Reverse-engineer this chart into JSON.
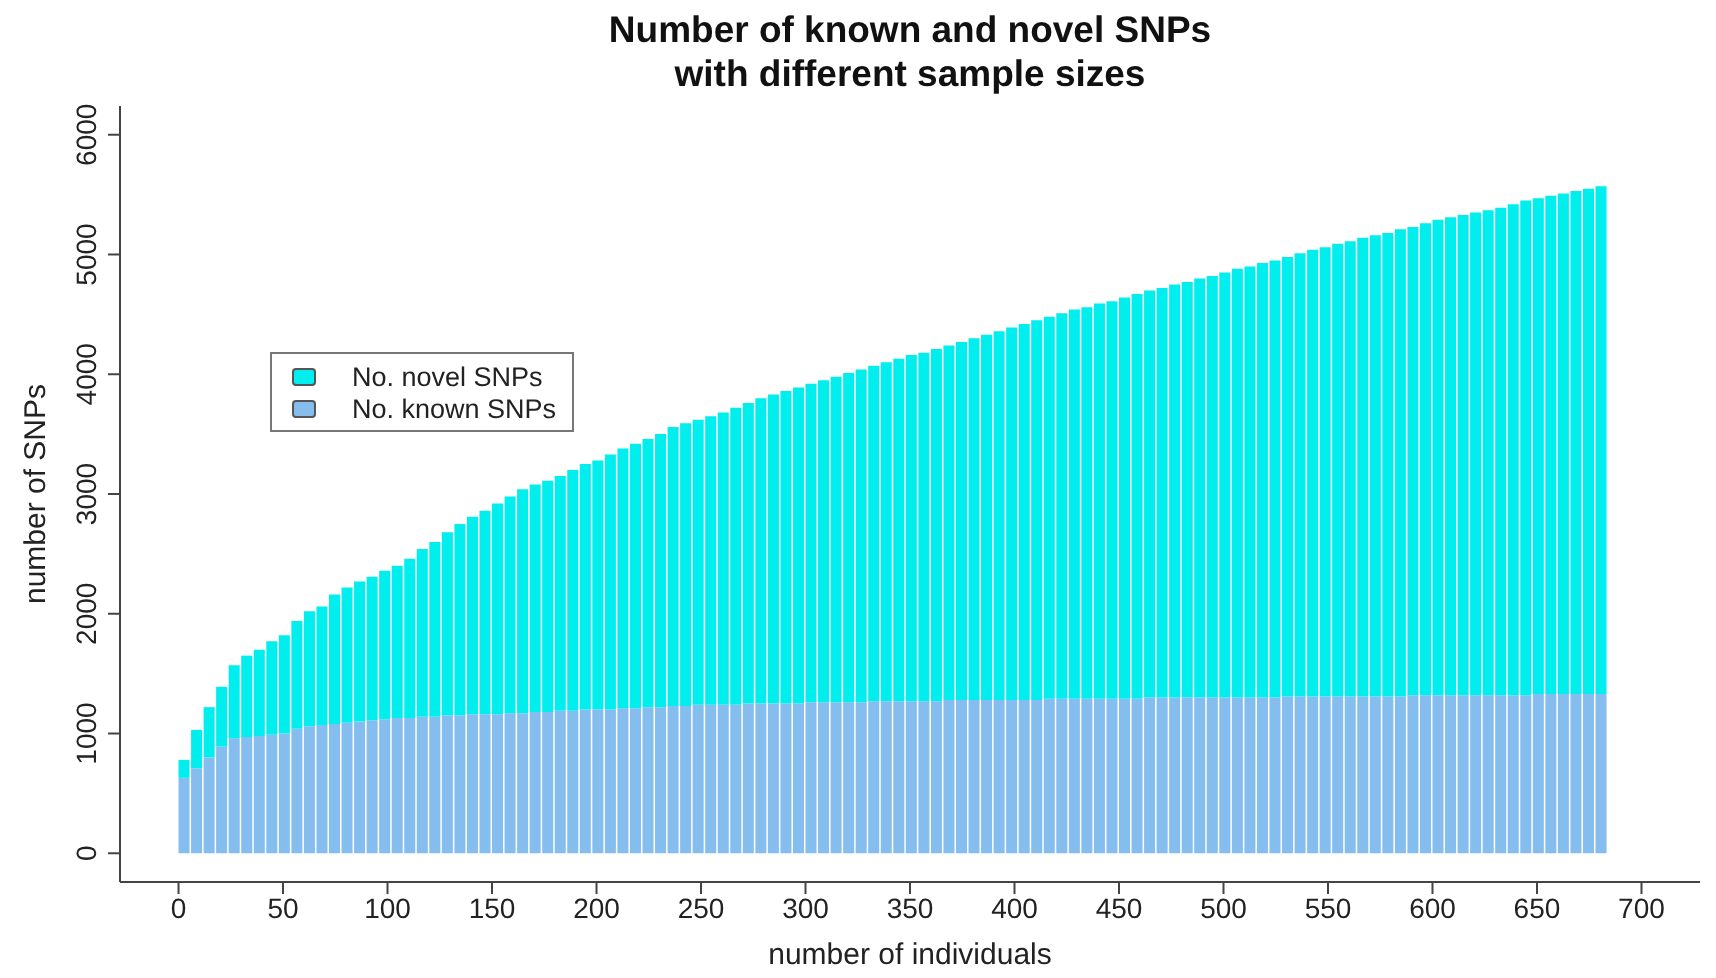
{
  "chart_data": {
    "type": "bar",
    "title": "Number of known and novel SNPs\nwith different sample sizes",
    "xlabel": "number of individuals",
    "ylabel": "number of SNPs",
    "x": [
      3,
      9,
      15,
      21,
      27,
      33,
      39,
      45,
      51,
      57,
      63,
      69,
      75,
      81,
      87,
      93,
      99,
      105,
      111,
      117,
      123,
      129,
      135,
      141,
      147,
      153,
      159,
      165,
      171,
      177,
      183,
      189,
      195,
      201,
      207,
      213,
      219,
      225,
      231,
      237,
      243,
      249,
      255,
      261,
      267,
      273,
      279,
      285,
      291,
      297,
      303,
      309,
      315,
      321,
      327,
      333,
      339,
      345,
      351,
      357,
      363,
      369,
      375,
      381,
      387,
      393,
      399,
      405,
      411,
      417,
      423,
      429,
      435,
      441,
      447,
      453,
      459,
      465,
      471,
      477,
      483,
      489,
      495,
      501,
      507,
      513,
      519,
      525,
      531,
      537,
      543,
      549,
      555,
      561,
      567,
      573,
      579,
      585,
      591,
      597,
      603,
      609,
      615,
      621,
      627,
      633,
      639,
      645,
      651,
      657,
      663,
      669,
      675,
      681
    ],
    "series": [
      {
        "name": "No. known SNPs",
        "color": "#85bdee",
        "values": [
          630,
          710,
          800,
          890,
          960,
          970,
          980,
          990,
          1000,
          1040,
          1060,
          1070,
          1080,
          1090,
          1100,
          1110,
          1120,
          1130,
          1130,
          1140,
          1140,
          1150,
          1150,
          1160,
          1160,
          1160,
          1170,
          1170,
          1180,
          1180,
          1190,
          1190,
          1200,
          1200,
          1200,
          1210,
          1210,
          1220,
          1220,
          1230,
          1230,
          1240,
          1240,
          1240,
          1240,
          1250,
          1250,
          1250,
          1250,
          1250,
          1260,
          1260,
          1260,
          1260,
          1260,
          1270,
          1270,
          1270,
          1270,
          1270,
          1270,
          1280,
          1280,
          1280,
          1280,
          1280,
          1280,
          1280,
          1280,
          1290,
          1290,
          1290,
          1290,
          1290,
          1290,
          1290,
          1290,
          1300,
          1300,
          1300,
          1300,
          1300,
          1300,
          1300,
          1300,
          1300,
          1300,
          1300,
          1310,
          1310,
          1310,
          1310,
          1310,
          1310,
          1310,
          1310,
          1310,
          1310,
          1320,
          1320,
          1320,
          1320,
          1320,
          1320,
          1320,
          1320,
          1320,
          1320,
          1330,
          1330,
          1330,
          1330,
          1330,
          1330
        ]
      },
      {
        "name": "No. novel SNPs",
        "color": "#00eeee",
        "values": [
          150,
          320,
          420,
          500,
          610,
          680,
          720,
          780,
          820,
          900,
          960,
          990,
          1080,
          1130,
          1170,
          1200,
          1240,
          1270,
          1330,
          1400,
          1460,
          1530,
          1600,
          1650,
          1700,
          1760,
          1810,
          1870,
          1900,
          1930,
          1960,
          2010,
          2050,
          2080,
          2130,
          2170,
          2210,
          2240,
          2280,
          2330,
          2360,
          2380,
          2410,
          2440,
          2480,
          2510,
          2550,
          2580,
          2610,
          2640,
          2660,
          2690,
          2720,
          2750,
          2780,
          2800,
          2830,
          2860,
          2890,
          2910,
          2940,
          2960,
          2990,
          3020,
          3050,
          3080,
          3110,
          3140,
          3170,
          3190,
          3220,
          3250,
          3270,
          3300,
          3320,
          3350,
          3380,
          3400,
          3420,
          3450,
          3470,
          3500,
          3520,
          3550,
          3580,
          3600,
          3630,
          3650,
          3670,
          3700,
          3730,
          3750,
          3780,
          3800,
          3830,
          3850,
          3870,
          3900,
          3910,
          3940,
          3970,
          3990,
          4010,
          4030,
          4050,
          4070,
          4100,
          4130,
          4140,
          4160,
          4180,
          4200,
          4220,
          4240
        ]
      }
    ],
    "stacked": true,
    "xlim": [
      -28,
      728
    ],
    "xticks": [
      0,
      50,
      100,
      150,
      200,
      250,
      300,
      350,
      400,
      450,
      500,
      550,
      600,
      650,
      700
    ],
    "ylim": [
      -240,
      6240
    ],
    "yticks": [
      0,
      1000,
      2000,
      3000,
      4000,
      5000,
      6000
    ],
    "legend": "top left"
  }
}
